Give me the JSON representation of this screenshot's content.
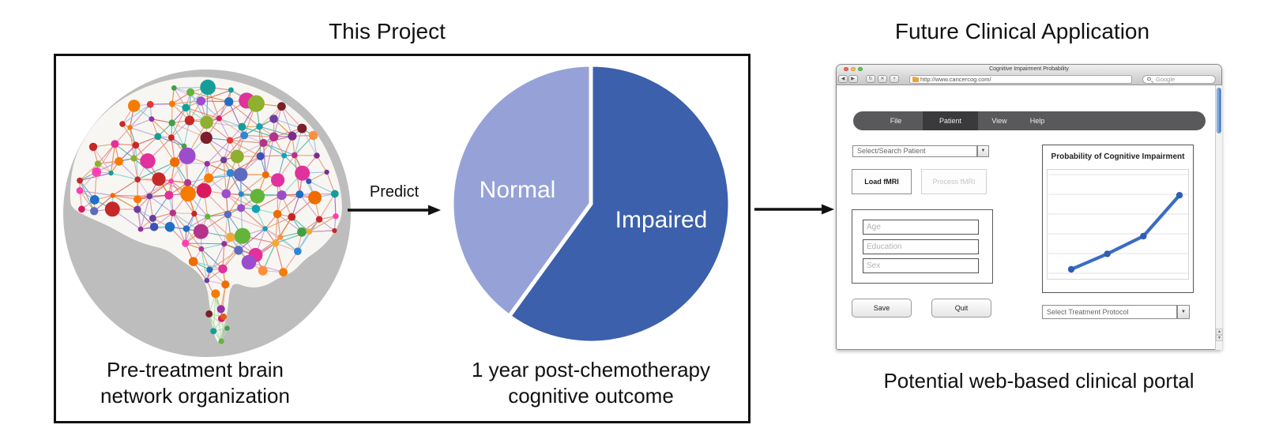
{
  "figure": {
    "left_title": "This Project",
    "right_title": "Future Clinical Application",
    "predict_label": "Predict",
    "brain_caption_line1": "Pre-treatment brain",
    "brain_caption_line2": "network organization",
    "pie_caption_line1": "1 year post-chemotherapy",
    "pie_caption_line2": "cognitive outcome",
    "portal_caption": "Potential web-based clinical portal"
  },
  "chart_data": [
    {
      "type": "pie",
      "title": "1 year post-chemotherapy cognitive outcome",
      "labels": [
        "Impaired",
        "Normal"
      ],
      "values": [
        60,
        40
      ],
      "colors": [
        "#3C60AB",
        "#96A2D7"
      ],
      "start_angle_deg": 0,
      "direction": "clockwise",
      "label_color": "#ffffff",
      "gap_color": "#ffffff"
    },
    {
      "type": "line",
      "title": "Probability of Cognitive Impairment",
      "x": [
        1,
        2,
        3,
        4
      ],
      "y": [
        0.1,
        0.24,
        0.4,
        0.77
      ],
      "ylim": [
        0,
        1
      ],
      "grid": "horizontal",
      "line_color": "#3B6CC4",
      "marker_color": "#2F5FB3",
      "gridline_color": "#e7e7e7",
      "tick_labels_visible": false
    }
  ],
  "browser": {
    "window_title": "Cognitive Impairment Probability",
    "url": "http://www.cancercog.com/",
    "search_placeholder": "Google",
    "menu": {
      "items": [
        "File",
        "Patient",
        "View",
        "Help"
      ],
      "active": "Patient"
    },
    "patient_dropdown": "Select/Search Patient",
    "buttons": {
      "load": "Load fMRI",
      "process": "Process fMRI",
      "save": "Save",
      "quit": "Quit"
    },
    "fields": [
      {
        "placeholder": "Age"
      },
      {
        "placeholder": "Education"
      },
      {
        "placeholder": "Sex"
      }
    ],
    "chart_title": "Probability of Cognitive Impairment",
    "treatment_dropdown": "Select Treatment Protocol"
  },
  "brain_network": {
    "disc_color": "#BDBDBD",
    "silhouette_color": "#F8F6F2",
    "seed": 11,
    "node_palette": [
      "#7B2D8E",
      "#9331A5",
      "#6A3FA0",
      "#9C4DCC",
      "#B5338A",
      "#D81B60",
      "#E0319D",
      "#FF3EB5",
      "#C62828",
      "#E53935",
      "#7A1F2B",
      "#EF6C00",
      "#F57C00",
      "#FF8F3C",
      "#F2A93B",
      "#3FA046",
      "#63B53A",
      "#8FAF2E",
      "#159E97",
      "#0FA3B8",
      "#1F6FC6",
      "#3F51B5",
      "#2E86D4",
      "#5C6BC0",
      "#B5338A",
      "#9331A5",
      "#C62828",
      "#E0319D"
    ],
    "edge_palette": [
      "#D98880",
      "#E59866",
      "#C39BD3",
      "#85C1E9",
      "#F1948A",
      "#BB8FCE",
      "#76D7C4",
      "#E6B0AA",
      "#D2B4DE",
      "#EC7063",
      "#E67E22",
      "#9B59B6",
      "#45B39D",
      "#5499C7",
      "#CD6155",
      "#E59866",
      "#D98880"
    ],
    "stem_edge_color": "#B9DCAE",
    "stem_nodes": [
      {
        "u": 0.06,
        "v": 0.56,
        "r": 5.5,
        "c": "#F57C00"
      },
      {
        "u": 0.015,
        "v": 0.7,
        "r": 4.5,
        "c": "#7A1F2B"
      },
      {
        "u": 0.115,
        "v": 0.72,
        "r": 4.0,
        "c": "#E8590C"
      },
      {
        "u": 0.045,
        "v": 0.82,
        "r": 4.0,
        "c": "#159E97"
      },
      {
        "u": 0.1,
        "v": 0.89,
        "r": 3.6,
        "c": "#63B53A"
      },
      {
        "u": 0.14,
        "v": 0.8,
        "r": 3.2,
        "c": "#3FA046"
      }
    ]
  }
}
